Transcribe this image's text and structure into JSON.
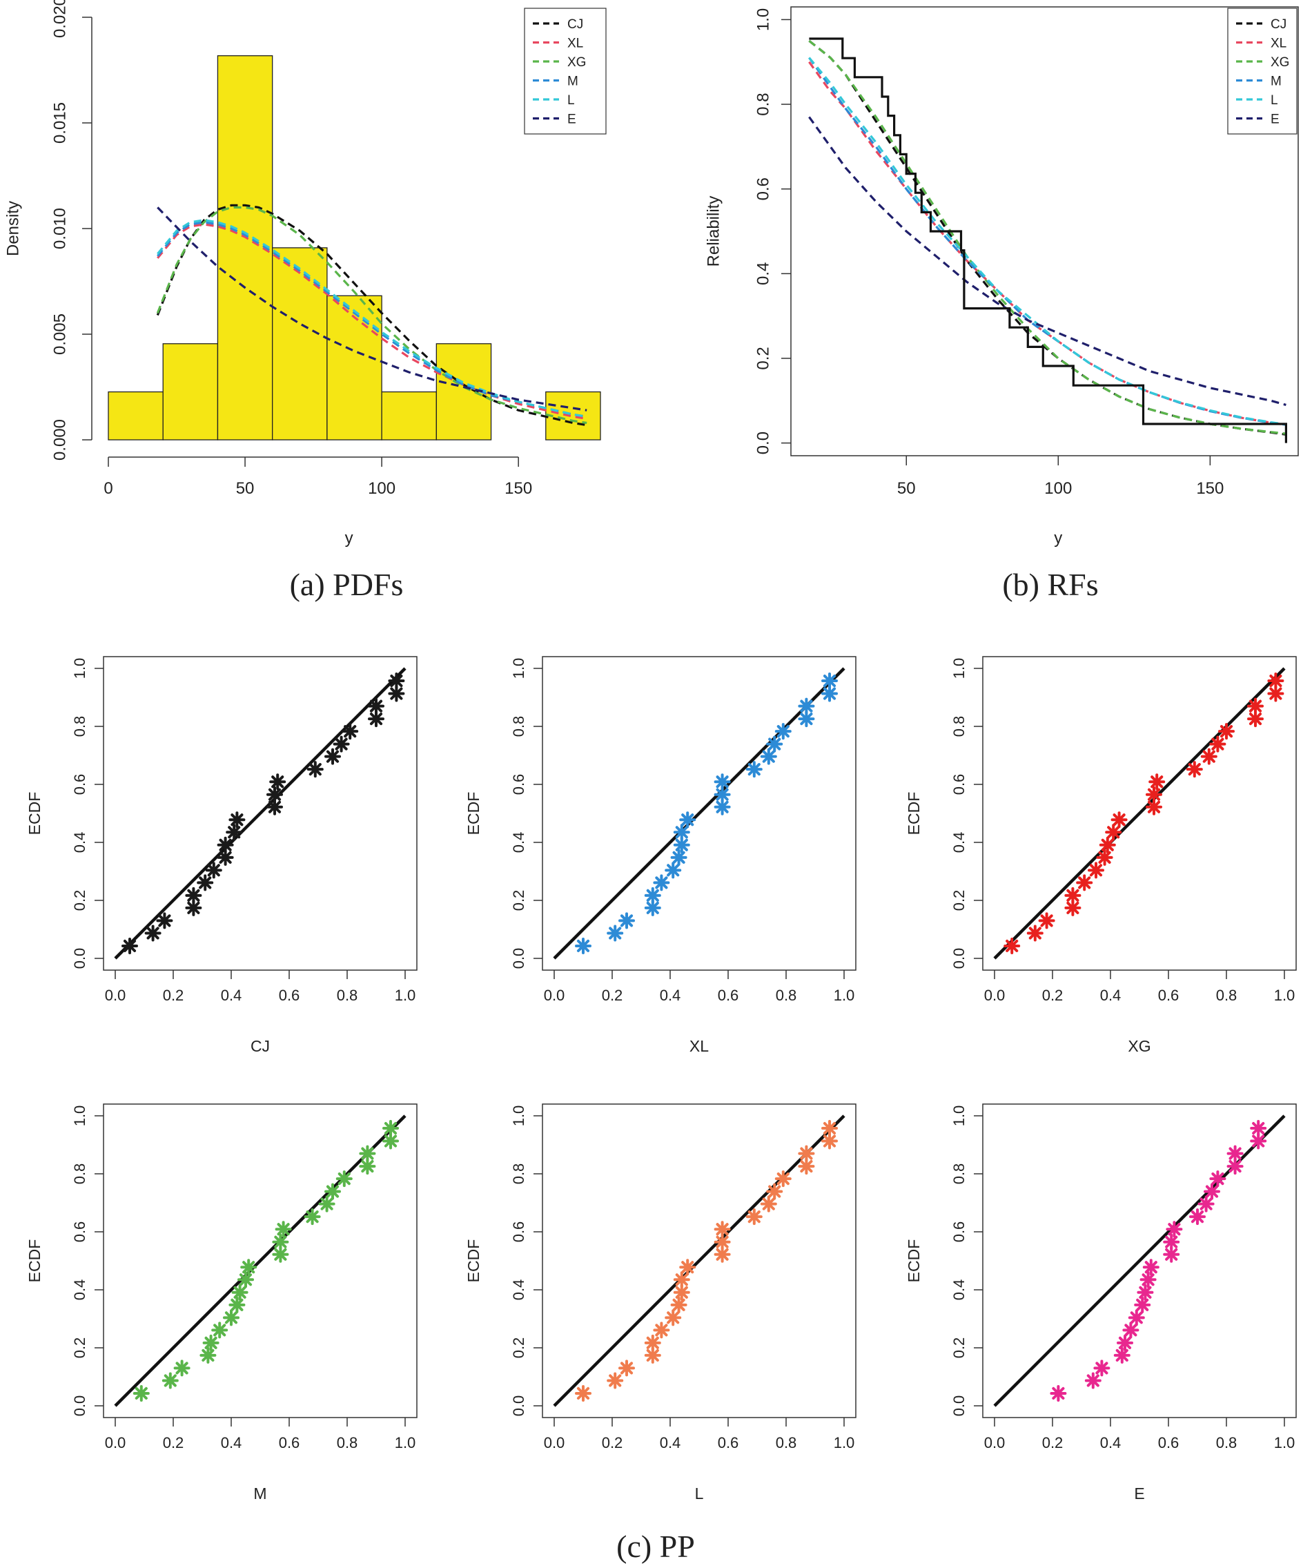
{
  "chart_data": [
    {
      "id": "pdfs",
      "type": "bar",
      "caption": "(a) PDFs",
      "xlabel": "y",
      "ylabel": "Density",
      "xlim": [
        0,
        180
      ],
      "ylim": [
        0,
        0.02
      ],
      "xticks": [
        0,
        50,
        100,
        150
      ],
      "yticks": [
        0.0,
        0.005,
        0.01,
        0.015,
        0.02
      ],
      "ytick_labels": [
        "0.000",
        "0.005",
        "0.010",
        "0.015",
        "0.020"
      ],
      "histogram": {
        "color": "#f5e614",
        "bins": [
          {
            "from": 0,
            "to": 20,
            "density": 0.00227
          },
          {
            "from": 20,
            "to": 40,
            "density": 0.00455
          },
          {
            "from": 40,
            "to": 60,
            "density": 0.01818
          },
          {
            "from": 60,
            "to": 80,
            "density": 0.00909
          },
          {
            "from": 80,
            "to": 100,
            "density": 0.00682
          },
          {
            "from": 100,
            "to": 120,
            "density": 0.00227
          },
          {
            "from": 120,
            "to": 140,
            "density": 0.00455
          },
          {
            "from": 140,
            "to": 160,
            "density": 0.0
          },
          {
            "from": 160,
            "to": 180,
            "density": 0.00227
          }
        ]
      },
      "legend_position": "top-right",
      "series": [
        {
          "name": "CJ",
          "color": "#111111",
          "x": [
            18,
            25,
            30,
            35,
            40,
            45,
            50,
            55,
            60,
            70,
            80,
            90,
            100,
            110,
            120,
            130,
            140,
            150,
            160,
            170,
            175
          ],
          "y": [
            0.0059,
            0.0082,
            0.0095,
            0.0104,
            0.0109,
            0.0111,
            0.0111,
            0.011,
            0.0107,
            0.0099,
            0.0088,
            0.0074,
            0.006,
            0.0047,
            0.0035,
            0.0026,
            0.0019,
            0.0014,
            0.0011,
            0.0008,
            0.0007
          ]
        },
        {
          "name": "XL",
          "color": "#e8475f",
          "x": [
            18,
            25,
            30,
            35,
            40,
            45,
            50,
            60,
            70,
            80,
            90,
            100,
            110,
            120,
            130,
            140,
            150,
            160,
            170,
            175
          ],
          "y": [
            0.0086,
            0.0097,
            0.0101,
            0.0102,
            0.0101,
            0.0099,
            0.0096,
            0.0088,
            0.0079,
            0.0069,
            0.0058,
            0.0048,
            0.0039,
            0.0032,
            0.0026,
            0.0021,
            0.0017,
            0.0014,
            0.0011,
            0.001
          ]
        },
        {
          "name": "XG",
          "color": "#5ab54a",
          "x": [
            18,
            25,
            30,
            35,
            40,
            45,
            50,
            55,
            60,
            70,
            80,
            90,
            100,
            110,
            120,
            130,
            140,
            150,
            160,
            170,
            175
          ],
          "y": [
            0.006,
            0.0083,
            0.0095,
            0.0103,
            0.0108,
            0.011,
            0.011,
            0.0109,
            0.0106,
            0.0097,
            0.0084,
            0.007,
            0.0055,
            0.0043,
            0.0033,
            0.0025,
            0.0019,
            0.0015,
            0.0012,
            0.0009,
            0.0008
          ]
        },
        {
          "name": "M",
          "color": "#2d8bd6",
          "x": [
            18,
            25,
            30,
            35,
            40,
            45,
            50,
            60,
            70,
            80,
            90,
            100,
            110,
            120,
            130,
            140,
            150,
            160,
            170,
            175
          ],
          "y": [
            0.0087,
            0.0098,
            0.0102,
            0.0103,
            0.0102,
            0.01,
            0.0097,
            0.0089,
            0.008,
            0.007,
            0.006,
            0.005,
            0.0041,
            0.0033,
            0.0026,
            0.0021,
            0.0018,
            0.0015,
            0.0012,
            0.0011
          ]
        },
        {
          "name": "L",
          "color": "#33c8d8",
          "x": [
            18,
            25,
            30,
            35,
            40,
            45,
            50,
            60,
            70,
            80,
            90,
            100,
            110,
            120,
            130,
            140,
            150,
            160,
            170,
            175
          ],
          "y": [
            0.0088,
            0.0099,
            0.0103,
            0.0104,
            0.0103,
            0.0101,
            0.0098,
            0.009,
            0.0081,
            0.0071,
            0.0061,
            0.0051,
            0.0042,
            0.0034,
            0.0027,
            0.0022,
            0.0018,
            0.0015,
            0.0012,
            0.0011
          ]
        },
        {
          "name": "E",
          "color": "#1f1f6b",
          "x": [
            18,
            30,
            40,
            50,
            60,
            70,
            80,
            90,
            100,
            110,
            120,
            130,
            140,
            150,
            160,
            170,
            175
          ],
          "y": [
            0.011,
            0.0094,
            0.0082,
            0.0072,
            0.0063,
            0.0055,
            0.0048,
            0.0042,
            0.0037,
            0.0032,
            0.0028,
            0.0025,
            0.0022,
            0.0019,
            0.0017,
            0.0015,
            0.0014
          ]
        }
      ]
    },
    {
      "id": "rfs",
      "type": "line",
      "caption": "(b) RFs",
      "xlabel": "y",
      "ylabel": "Reliability",
      "xlim": [
        12,
        179
      ],
      "ylim": [
        -0.03,
        1.03
      ],
      "xticks": [
        50,
        100,
        150
      ],
      "yticks": [
        0.0,
        0.2,
        0.4,
        0.6,
        0.8,
        1.0
      ],
      "ytick_labels": [
        "0.0",
        "0.2",
        "0.4",
        "0.6",
        "0.8",
        "1.0"
      ],
      "legend_position": "top-right",
      "empirical_step": {
        "color": "#111111",
        "x": [
          18,
          29,
          33,
          42,
          44,
          46,
          48,
          50,
          53,
          55,
          58,
          68,
          69,
          84,
          90,
          95,
          100,
          105,
          110,
          128,
          175
        ],
        "y": [
          0.955,
          0.909,
          0.864,
          0.818,
          0.773,
          0.727,
          0.682,
          0.636,
          0.591,
          0.545,
          0.5,
          0.455,
          0.318,
          0.273,
          0.227,
          0.182,
          0.182,
          0.136,
          0.136,
          0.045,
          0.0
        ]
      },
      "series": [
        {
          "name": "CJ",
          "color": "#111111",
          "x": [
            18,
            25,
            30,
            40,
            50,
            60,
            70,
            80,
            90,
            100,
            110,
            120,
            130,
            140,
            150,
            160,
            170,
            175
          ],
          "y": [
            0.95,
            0.91,
            0.87,
            0.76,
            0.65,
            0.54,
            0.43,
            0.34,
            0.26,
            0.2,
            0.15,
            0.11,
            0.08,
            0.06,
            0.045,
            0.034,
            0.025,
            0.02
          ]
        },
        {
          "name": "XL",
          "color": "#e8475f",
          "x": [
            18,
            25,
            30,
            40,
            50,
            60,
            70,
            80,
            90,
            100,
            110,
            120,
            130,
            140,
            150,
            160,
            170,
            175
          ],
          "y": [
            0.9,
            0.83,
            0.79,
            0.69,
            0.6,
            0.51,
            0.43,
            0.36,
            0.29,
            0.24,
            0.19,
            0.15,
            0.12,
            0.095,
            0.076,
            0.06,
            0.048,
            0.043
          ]
        },
        {
          "name": "XG",
          "color": "#5ab54a",
          "x": [
            18,
            25,
            30,
            40,
            50,
            60,
            70,
            80,
            90,
            100,
            110,
            120,
            130,
            140,
            150,
            160,
            170,
            175
          ],
          "y": [
            0.95,
            0.91,
            0.87,
            0.77,
            0.66,
            0.55,
            0.44,
            0.35,
            0.27,
            0.2,
            0.15,
            0.11,
            0.08,
            0.06,
            0.045,
            0.034,
            0.026,
            0.022
          ]
        },
        {
          "name": "M",
          "color": "#2d8bd6",
          "x": [
            18,
            25,
            30,
            40,
            50,
            60,
            70,
            80,
            90,
            100,
            110,
            120,
            130,
            140,
            150,
            160,
            170,
            175
          ],
          "y": [
            0.91,
            0.84,
            0.79,
            0.7,
            0.6,
            0.51,
            0.43,
            0.36,
            0.29,
            0.24,
            0.19,
            0.15,
            0.12,
            0.095,
            0.075,
            0.06,
            0.048,
            0.043
          ]
        },
        {
          "name": "L",
          "color": "#33c8d8",
          "x": [
            18,
            25,
            30,
            40,
            50,
            60,
            70,
            80,
            90,
            100,
            110,
            120,
            130,
            140,
            150,
            160,
            170,
            175
          ],
          "y": [
            0.91,
            0.85,
            0.8,
            0.71,
            0.61,
            0.52,
            0.44,
            0.36,
            0.3,
            0.24,
            0.19,
            0.15,
            0.12,
            0.096,
            0.077,
            0.061,
            0.049,
            0.044
          ]
        },
        {
          "name": "E",
          "color": "#1f1f6b",
          "x": [
            18,
            25,
            30,
            40,
            50,
            60,
            70,
            80,
            90,
            100,
            110,
            120,
            130,
            140,
            150,
            160,
            170,
            175
          ],
          "y": [
            0.77,
            0.7,
            0.65,
            0.57,
            0.5,
            0.44,
            0.38,
            0.33,
            0.29,
            0.26,
            0.23,
            0.2,
            0.17,
            0.15,
            0.13,
            0.115,
            0.1,
            0.09
          ]
        }
      ]
    },
    {
      "id": "pp",
      "type": "scatter",
      "caption": "(c) PP",
      "ylabel": "ECDF",
      "xlim": [
        0,
        1
      ],
      "ylim": [
        0,
        1
      ],
      "ticks": [
        0.0,
        0.2,
        0.4,
        0.6,
        0.8,
        1.0
      ],
      "tick_labels": [
        "0.0",
        "0.2",
        "0.4",
        "0.6",
        "0.8",
        "1.0"
      ],
      "ecdf": [
        0.043,
        0.087,
        0.13,
        0.174,
        0.217,
        0.261,
        0.304,
        0.348,
        0.391,
        0.435,
        0.478,
        0.522,
        0.565,
        0.609,
        0.652,
        0.696,
        0.739,
        0.783,
        0.826,
        0.87,
        0.913,
        0.957
      ],
      "panels": [
        {
          "name": "CJ",
          "xlabel": "CJ",
          "color": "#1a1a1a",
          "x": [
            0.05,
            0.13,
            0.17,
            0.27,
            0.27,
            0.31,
            0.34,
            0.38,
            0.38,
            0.41,
            0.42,
            0.55,
            0.55,
            0.56,
            0.69,
            0.75,
            0.78,
            0.81,
            0.9,
            0.9,
            0.97,
            0.97
          ]
        },
        {
          "name": "XL",
          "xlabel": "XL",
          "color": "#2d8bd6",
          "x": [
            0.1,
            0.21,
            0.25,
            0.34,
            0.34,
            0.37,
            0.41,
            0.43,
            0.44,
            0.44,
            0.46,
            0.58,
            0.58,
            0.58,
            0.69,
            0.74,
            0.76,
            0.79,
            0.87,
            0.87,
            0.95,
            0.95
          ]
        },
        {
          "name": "XG",
          "xlabel": "XG",
          "color": "#e8201e",
          "x": [
            0.06,
            0.14,
            0.18,
            0.27,
            0.27,
            0.31,
            0.35,
            0.38,
            0.39,
            0.41,
            0.43,
            0.55,
            0.55,
            0.56,
            0.69,
            0.74,
            0.77,
            0.8,
            0.9,
            0.9,
            0.97,
            0.97
          ]
        },
        {
          "name": "M",
          "xlabel": "M",
          "color": "#5ab54a",
          "x": [
            0.09,
            0.19,
            0.23,
            0.32,
            0.33,
            0.36,
            0.4,
            0.42,
            0.43,
            0.45,
            0.46,
            0.57,
            0.57,
            0.58,
            0.68,
            0.73,
            0.75,
            0.79,
            0.87,
            0.87,
            0.95,
            0.95
          ]
        },
        {
          "name": "L",
          "xlabel": "L",
          "color": "#f07c4d",
          "x": [
            0.1,
            0.21,
            0.25,
            0.34,
            0.34,
            0.37,
            0.41,
            0.43,
            0.44,
            0.44,
            0.46,
            0.58,
            0.58,
            0.58,
            0.69,
            0.74,
            0.76,
            0.79,
            0.87,
            0.87,
            0.95,
            0.95
          ]
        },
        {
          "name": "E",
          "xlabel": "E",
          "color": "#e8278f",
          "x": [
            0.22,
            0.34,
            0.37,
            0.44,
            0.45,
            0.47,
            0.49,
            0.51,
            0.52,
            0.53,
            0.54,
            0.61,
            0.61,
            0.62,
            0.7,
            0.73,
            0.75,
            0.77,
            0.83,
            0.83,
            0.91,
            0.91
          ]
        }
      ]
    }
  ]
}
